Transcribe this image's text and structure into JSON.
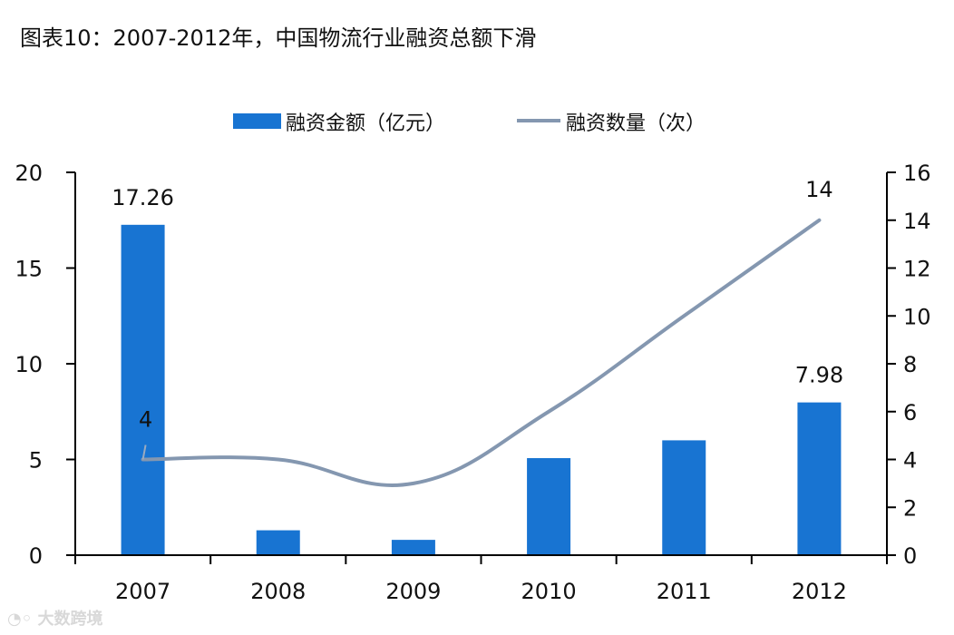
{
  "title": "图表10：2007-2012年，中国物流行业融资总额下滑",
  "watermark": "大数跨境",
  "colors": {
    "bar": "#1874d2",
    "line": "#8497b0",
    "axis": "#000000"
  },
  "legend": [
    {
      "label": "融资金额（亿元）",
      "type": "bar"
    },
    {
      "label": "融资数量（次）",
      "type": "line"
    }
  ],
  "chart_data": {
    "type": "bar",
    "title": "图表10：2007-2012年，中国物流行业融资总额下滑",
    "categories": [
      "2007",
      "2008",
      "2009",
      "2010",
      "2011",
      "2012"
    ],
    "series": [
      {
        "name": "融资金额（亿元）",
        "type": "bar",
        "axis": "left",
        "values": [
          17.26,
          1.3,
          0.8,
          5.07,
          6.0,
          7.98
        ]
      },
      {
        "name": "融资数量（次）",
        "type": "line",
        "axis": "right",
        "smooth": true,
        "values": [
          4,
          4,
          3,
          6,
          10,
          14
        ]
      }
    ],
    "data_labels": [
      {
        "series": "融资金额（亿元）",
        "category": "2007",
        "text": "17.26"
      },
      {
        "series": "融资金额（亿元）",
        "category": "2012",
        "text": "7.98"
      },
      {
        "series": "融资数量（次）",
        "category": "2007",
        "text": "4"
      },
      {
        "series": "融资数量（次）",
        "category": "2012",
        "text": "14"
      }
    ],
    "y_left": {
      "range": [
        0,
        20
      ],
      "ticks": [
        "0",
        "5",
        "10",
        "15",
        "20"
      ]
    },
    "y_right": {
      "range": [
        0,
        16
      ],
      "ticks": [
        "0",
        "2",
        "4",
        "6",
        "8",
        "10",
        "12",
        "14",
        "16"
      ]
    },
    "xlabel": "",
    "ylabel": "",
    "grid": false,
    "legend_position": "top"
  }
}
